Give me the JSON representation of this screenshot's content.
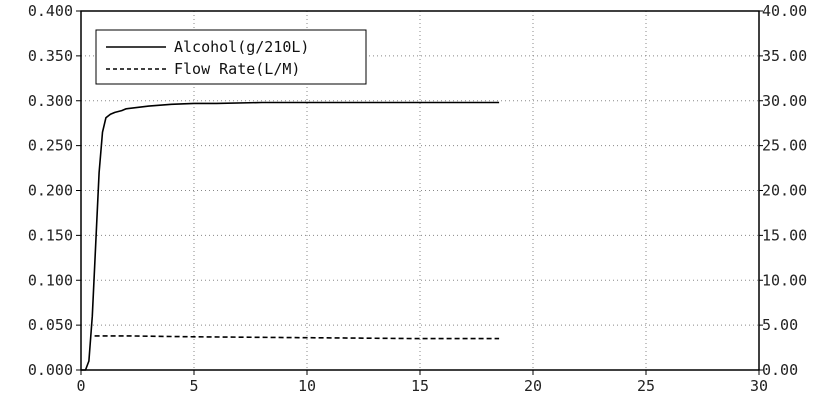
{
  "chart_data": {
    "type": "line",
    "title": "",
    "xlabel": "",
    "ylabel": "",
    "y2label": "",
    "xlim": [
      0,
      30
    ],
    "ylim": [
      0,
      0.4
    ],
    "y2lim": [
      0,
      40
    ],
    "x_ticks": [
      "0",
      "5",
      "10",
      "15",
      "20",
      "25",
      "30"
    ],
    "y_ticks": [
      "0.000",
      "0.050",
      "0.100",
      "0.150",
      "0.200",
      "0.250",
      "0.300",
      "0.350",
      "0.400"
    ],
    "y2_ticks": [
      "0.00",
      "5.00",
      "10.00",
      "15.00",
      "20.00",
      "25.00",
      "30.00",
      "35.00",
      "40.00"
    ],
    "grid": true,
    "legend_position": "top-left",
    "series": [
      {
        "name": "Alcohol(g/210L)",
        "axis": "left",
        "style": "solid",
        "color": "#000000",
        "x": [
          0,
          0.2,
          0.35,
          0.5,
          0.65,
          0.8,
          0.95,
          1.1,
          1.3,
          1.5,
          1.8,
          2.0,
          3.0,
          4.0,
          5.0,
          6.0,
          8.0,
          10.0,
          12.0,
          15.0,
          18.5
        ],
        "y": [
          0,
          0.0,
          0.01,
          0.06,
          0.14,
          0.22,
          0.265,
          0.281,
          0.285,
          0.287,
          0.289,
          0.291,
          0.294,
          0.296,
          0.297,
          0.297,
          0.298,
          0.298,
          0.298,
          0.298,
          0.298
        ]
      },
      {
        "name": "Flow Rate(L/M)",
        "axis": "right",
        "style": "dashed",
        "color": "#000000",
        "x": [
          0.6,
          2,
          5,
          10,
          15,
          18.5
        ],
        "y": [
          3.8,
          3.8,
          3.7,
          3.6,
          3.5,
          3.5
        ]
      }
    ]
  },
  "legend": {
    "items": [
      "Alcohol(g/210L)",
      "Flow Rate(L/M)"
    ]
  }
}
